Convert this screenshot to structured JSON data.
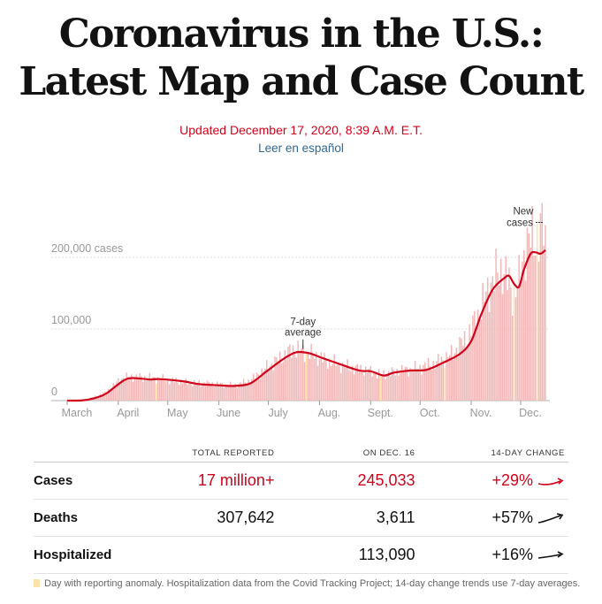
{
  "header": {
    "headline_line1": "Coronavirus in the U.S.:",
    "headline_line2": "Latest Map and Case Count",
    "updated": "Updated December 17, 2020, 8:39 A.M. E.T.",
    "spanish_link": "Leer en español"
  },
  "chart_data": {
    "type": "bar",
    "title": "",
    "xlabel": "",
    "ylabel": "",
    "ylim": [
      0,
      250000
    ],
    "y_ticks": [
      {
        "value": 0,
        "label": "0"
      },
      {
        "value": 100000,
        "label": "100,000"
      },
      {
        "value": 200000,
        "label": "200,000 cases"
      }
    ],
    "x_start": "2020-03-01",
    "x_end": "2020-12-16",
    "x_ticks": [
      {
        "date": "2020-03-01",
        "label": "March"
      },
      {
        "date": "2020-04-01",
        "label": "April"
      },
      {
        "date": "2020-05-01",
        "label": "May"
      },
      {
        "date": "2020-06-01",
        "label": "June"
      },
      {
        "date": "2020-07-01",
        "label": "July"
      },
      {
        "date": "2020-08-01",
        "label": "Aug."
      },
      {
        "date": "2020-09-01",
        "label": "Sept."
      },
      {
        "date": "2020-10-01",
        "label": "Oct."
      },
      {
        "date": "2020-11-01",
        "label": "Nov."
      },
      {
        "date": "2020-12-01",
        "label": "Dec."
      }
    ],
    "series": [
      {
        "name": "New cases",
        "color": "#f4b7b7",
        "anchors": [
          {
            "date": "2020-03-01",
            "value": 0
          },
          {
            "date": "2020-03-10",
            "value": 300
          },
          {
            "date": "2020-03-17",
            "value": 5000
          },
          {
            "date": "2020-03-24",
            "value": 11000
          },
          {
            "date": "2020-03-31",
            "value": 25000
          },
          {
            "date": "2020-04-04",
            "value": 32000
          },
          {
            "date": "2020-04-10",
            "value": 33000
          },
          {
            "date": "2020-04-24",
            "value": 31000
          },
          {
            "date": "2020-05-01",
            "value": 29000
          },
          {
            "date": "2020-05-15",
            "value": 25000
          },
          {
            "date": "2020-05-30",
            "value": 23000
          },
          {
            "date": "2020-06-10",
            "value": 21000
          },
          {
            "date": "2020-06-20",
            "value": 28000
          },
          {
            "date": "2020-07-01",
            "value": 48000
          },
          {
            "date": "2020-07-10",
            "value": 62000
          },
          {
            "date": "2020-07-16",
            "value": 72000
          },
          {
            "date": "2020-07-24",
            "value": 68000
          },
          {
            "date": "2020-08-05",
            "value": 56000
          },
          {
            "date": "2020-08-20",
            "value": 46000
          },
          {
            "date": "2020-08-30",
            "value": 42000
          },
          {
            "date": "2020-09-08",
            "value": 36000
          },
          {
            "date": "2020-09-15",
            "value": 40000
          },
          {
            "date": "2020-09-28",
            "value": 45000
          },
          {
            "date": "2020-10-10",
            "value": 52000
          },
          {
            "date": "2020-10-20",
            "value": 64000
          },
          {
            "date": "2020-10-30",
            "value": 90000
          },
          {
            "date": "2020-11-06",
            "value": 125000
          },
          {
            "date": "2020-11-13",
            "value": 165000
          },
          {
            "date": "2020-11-20",
            "value": 185000
          },
          {
            "date": "2020-11-26",
            "value": 150000
          },
          {
            "date": "2020-11-30",
            "value": 165000
          },
          {
            "date": "2020-12-04",
            "value": 218000
          },
          {
            "date": "2020-12-11",
            "value": 230000
          },
          {
            "date": "2020-12-16",
            "value": 245033
          }
        ]
      },
      {
        "name": "7-day average",
        "color": "#d0021b",
        "points": [
          {
            "date": "2020-03-01",
            "value": 0
          },
          {
            "date": "2020-03-10",
            "value": 300
          },
          {
            "date": "2020-03-17",
            "value": 3000
          },
          {
            "date": "2020-03-24",
            "value": 9000
          },
          {
            "date": "2020-03-31",
            "value": 21000
          },
          {
            "date": "2020-04-05",
            "value": 29000
          },
          {
            "date": "2020-04-10",
            "value": 31500
          },
          {
            "date": "2020-04-20",
            "value": 29500
          },
          {
            "date": "2020-04-26",
            "value": 30000
          },
          {
            "date": "2020-05-10",
            "value": 27000
          },
          {
            "date": "2020-05-20",
            "value": 23000
          },
          {
            "date": "2020-05-31",
            "value": 21500
          },
          {
            "date": "2020-06-10",
            "value": 20500
          },
          {
            "date": "2020-06-20",
            "value": 24000
          },
          {
            "date": "2020-06-30",
            "value": 41000
          },
          {
            "date": "2020-07-10",
            "value": 58000
          },
          {
            "date": "2020-07-18",
            "value": 67500
          },
          {
            "date": "2020-07-26",
            "value": 66000
          },
          {
            "date": "2020-08-02",
            "value": 60000
          },
          {
            "date": "2020-08-12",
            "value": 52000
          },
          {
            "date": "2020-08-25",
            "value": 42000
          },
          {
            "date": "2020-09-01",
            "value": 41000
          },
          {
            "date": "2020-09-09",
            "value": 35000
          },
          {
            "date": "2020-09-15",
            "value": 39000
          },
          {
            "date": "2020-09-25",
            "value": 42000
          },
          {
            "date": "2020-10-05",
            "value": 43000
          },
          {
            "date": "2020-10-15",
            "value": 53000
          },
          {
            "date": "2020-10-25",
            "value": 65000
          },
          {
            "date": "2020-11-01",
            "value": 83000
          },
          {
            "date": "2020-11-07",
            "value": 120000
          },
          {
            "date": "2020-11-14",
            "value": 155000
          },
          {
            "date": "2020-11-21",
            "value": 171000
          },
          {
            "date": "2020-11-24",
            "value": 174000
          },
          {
            "date": "2020-11-27",
            "value": 163000
          },
          {
            "date": "2020-11-30",
            "value": 159000
          },
          {
            "date": "2020-12-03",
            "value": 183000
          },
          {
            "date": "2020-12-07",
            "value": 205000
          },
          {
            "date": "2020-12-10",
            "value": 207000
          },
          {
            "date": "2020-12-13",
            "value": 205000
          },
          {
            "date": "2020-12-16",
            "value": 210000
          }
        ]
      }
    ],
    "anomaly_dates": [
      "2020-04-24",
      "2020-07-24",
      "2020-09-07",
      "2020-10-16",
      "2020-11-27",
      "2020-12-11"
    ],
    "annotations": [
      {
        "text": [
          "7-day",
          "average"
        ],
        "date": "2020-07-22",
        "value": 67000
      },
      {
        "text": [
          "New",
          "cases"
        ],
        "date": "2020-12-16",
        "value": 245033
      }
    ]
  },
  "table": {
    "headers": [
      "",
      "TOTAL REPORTED",
      "ON DEC. 16",
      "14-DAY CHANGE"
    ],
    "rows": [
      {
        "label": "Cases",
        "total": "17 million+",
        "day": "245,033",
        "change": "+29%",
        "color": "#d0021b"
      },
      {
        "label": "Deaths",
        "total": "307,642",
        "day": "3,611",
        "change": "+57%",
        "color": "#121212"
      },
      {
        "label": "Hospitalized",
        "total": "",
        "day": "113,090",
        "change": "+16%",
        "color": "#121212"
      }
    ]
  },
  "footnote": "Day with reporting anomaly. Hospitalization data from the Covid Tracking Project; 14-day change trends use 7-day averages.",
  "colors": {
    "accent_red": "#d0021b",
    "bar_pink": "#f4b7b7",
    "anomaly_yellow": "#fde3a7",
    "link_blue": "#326891"
  }
}
